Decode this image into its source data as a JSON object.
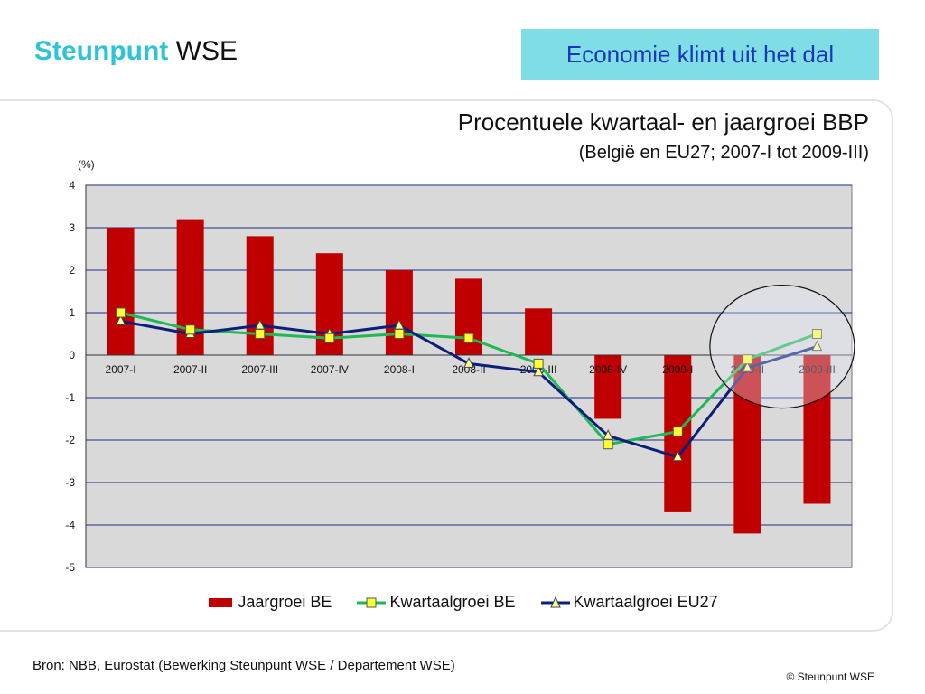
{
  "header": {
    "logo_part1": "Steunpunt",
    "logo_part2": "WSE",
    "slide_title": "Economie klimt uit het dal"
  },
  "chart_heading": {
    "title": "Procentuele kwartaal- en jaargroei BBP",
    "subtitle": "(België en EU27; 2007-I tot 2009-III)",
    "unit": "(%)"
  },
  "footer": {
    "source": "Bron: NBB, Eurostat (Bewerking Steunpunt WSE / Departement WSE)",
    "copyright": "© Steunpunt WSE"
  },
  "colors": {
    "bar": "#c00000",
    "line_be": "#1db954",
    "line_eu": "#0a1f7a",
    "plot_bg": "#d9d9d9",
    "grid": "#1a2a8a"
  },
  "chart_data": {
    "type": "bar",
    "categories": [
      "2007-I",
      "2007-II",
      "2007-III",
      "2007-IV",
      "2008-I",
      "2008-II",
      "2008-III",
      "2008-IV",
      "2009-I",
      "2009-II",
      "2009-III"
    ],
    "ylim": [
      -5,
      4
    ],
    "yticks": [
      4,
      3,
      2,
      1,
      0,
      -1,
      -2,
      -3,
      -4,
      -5
    ],
    "grid": true,
    "legend_position": "bottom",
    "series": [
      {
        "name": "Jaargroei BE",
        "type": "bar",
        "values": [
          3.0,
          3.2,
          2.8,
          2.4,
          2.0,
          1.8,
          1.1,
          -1.5,
          -3.7,
          -4.2,
          -3.5
        ]
      },
      {
        "name": "Kwartaalgroei BE",
        "type": "line",
        "marker": "square",
        "values": [
          1.0,
          0.6,
          0.5,
          0.4,
          0.5,
          0.4,
          -0.2,
          -2.1,
          -1.8,
          -0.1,
          0.5
        ]
      },
      {
        "name": "Kwartaalgroei EU27",
        "type": "line",
        "marker": "triangle",
        "values": [
          0.8,
          0.5,
          0.7,
          0.5,
          0.7,
          -0.2,
          -0.4,
          -1.9,
          -2.4,
          -0.3,
          0.2
        ]
      }
    ],
    "annotation": "circle highlighting 2009-II and 2009-III"
  }
}
